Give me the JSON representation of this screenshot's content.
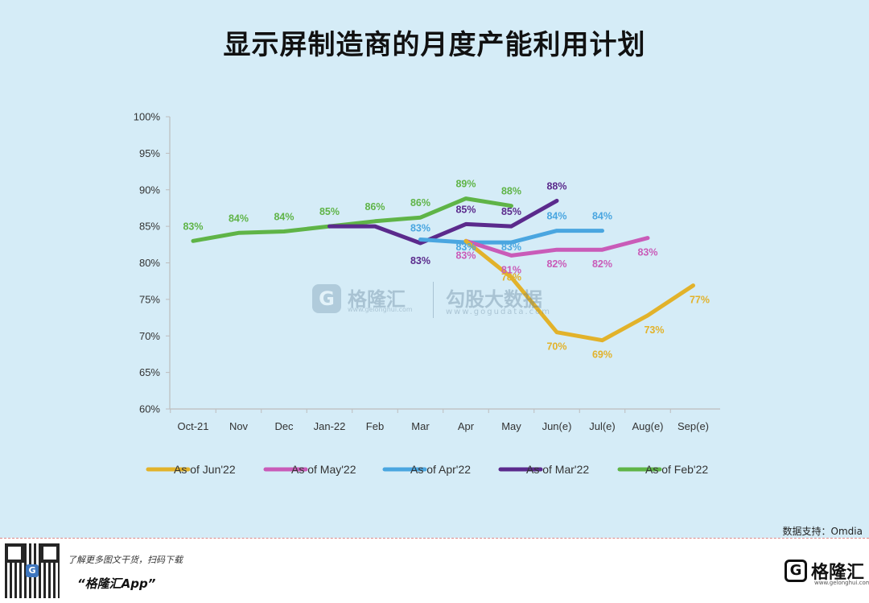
{
  "title": "显示屏制造商的月度产能利用计划",
  "source": "数据支持：Omdia",
  "watermark": {
    "logo_char": "G",
    "brand": "格隆汇",
    "brand_url": "www.gelonghui.com",
    "site": "勾股大数据",
    "site_url": "www.gogudata.com"
  },
  "footer": {
    "qr_center": "G",
    "promo": "了解更多图文干货，扫码下载",
    "app": "“格隆汇App”",
    "logo_char": "G",
    "brand": "格隆汇",
    "brand_url": "www.gelonghui.com"
  },
  "chart_data": {
    "type": "line",
    "title": "显示屏制造商的月度产能利用计划",
    "xlabel": "",
    "ylabel": "",
    "categories": [
      "Oct-21",
      "Nov",
      "Dec",
      "Jan-22",
      "Feb",
      "Mar",
      "Apr",
      "May",
      "Jun(e)",
      "Jul(e)",
      "Aug(e)",
      "Sep(e)"
    ],
    "ylim": [
      60,
      100
    ],
    "yticks": [
      "60%",
      "65%",
      "70%",
      "75%",
      "80%",
      "85%",
      "90%",
      "95%",
      "100%"
    ],
    "grid": false,
    "legend_position": "bottom",
    "series": [
      {
        "name": "As of Jun'22",
        "color": "#e2b22a",
        "values": [
          null,
          null,
          null,
          null,
          null,
          null,
          83,
          78,
          70.5,
          69.4,
          72.8,
          76.9
        ],
        "labels": [
          null,
          null,
          null,
          null,
          null,
          null,
          null,
          "78%",
          "70%",
          "69%",
          "73%",
          "77%"
        ]
      },
      {
        "name": "As of May'22",
        "color": "#c95bb8",
        "values": [
          null,
          null,
          null,
          null,
          null,
          null,
          83,
          81,
          81.8,
          81.8,
          83.4,
          null
        ],
        "labels": [
          null,
          null,
          null,
          null,
          null,
          null,
          "83%",
          "81%",
          "82%",
          "82%",
          "83%",
          null
        ]
      },
      {
        "name": "As of Apr'22",
        "color": "#4aa6e0",
        "values": [
          null,
          null,
          null,
          null,
          null,
          83.2,
          82.8,
          82.8,
          84.4,
          84.4,
          null,
          null
        ],
        "labels": [
          null,
          null,
          null,
          null,
          null,
          "83%",
          "83%",
          "83%",
          "84%",
          "84%",
          null,
          null
        ]
      },
      {
        "name": "As of Mar'22",
        "color": "#5b2a8c",
        "values": [
          null,
          null,
          null,
          85,
          85,
          82.7,
          85.3,
          85,
          88.5,
          null,
          null,
          null
        ],
        "labels": [
          null,
          null,
          null,
          null,
          null,
          "83%",
          "85%",
          "85%",
          "88%",
          null,
          null,
          null
        ]
      },
      {
        "name": "As of Feb'22",
        "color": "#5fb447",
        "values": [
          83,
          84.1,
          84.3,
          85,
          85.7,
          86.2,
          88.8,
          87.8,
          null,
          null,
          null,
          null
        ],
        "labels": [
          "83%",
          "84%",
          "84%",
          "85%",
          "86%",
          "86%",
          "89%",
          "88%",
          null,
          null,
          null,
          null
        ]
      }
    ]
  }
}
